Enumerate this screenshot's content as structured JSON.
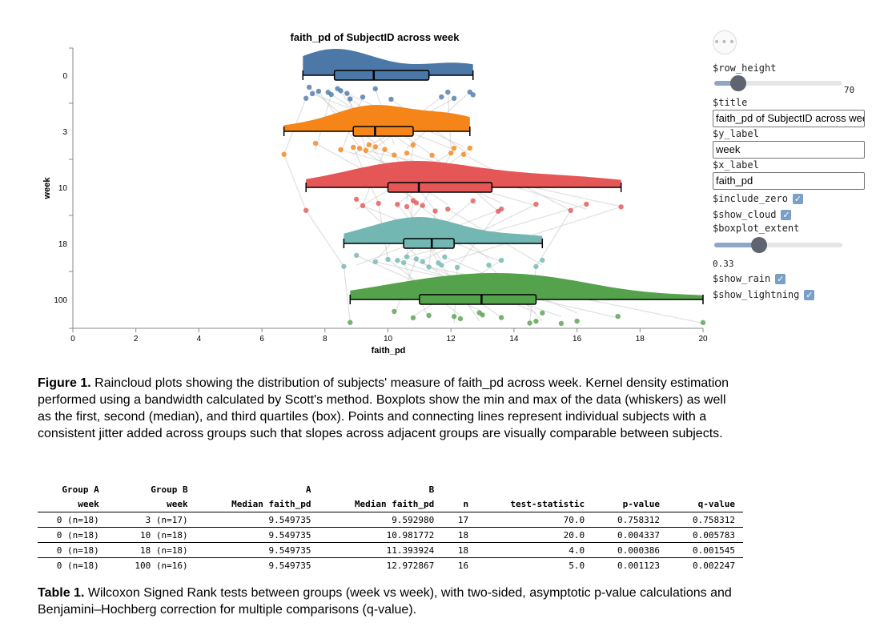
{
  "chart_data": {
    "type": "raincloud",
    "title": "faith_pd of SubjectID across week",
    "xlabel": "faith_pd",
    "ylabel": "week",
    "xlim": [
      0,
      20
    ],
    "x_ticks": [
      0,
      2,
      4,
      6,
      8,
      10,
      12,
      14,
      16,
      18,
      20
    ],
    "groups": [
      {
        "name": "0",
        "color": "#4c78a8",
        "min": 7.3,
        "q1": 8.3,
        "median": 9.55,
        "q3": 11.3,
        "max": 12.7,
        "points": [
          7.4,
          7.5,
          7.6,
          7.8,
          8.1,
          8.2,
          8.4,
          8.5,
          8.7,
          8.8,
          9.2,
          9.6,
          10.1,
          11.7,
          11.9,
          12.1,
          12.6,
          12.7
        ]
      },
      {
        "name": "3",
        "color": "#f58518",
        "min": 6.7,
        "q1": 8.9,
        "median": 9.59,
        "q3": 10.8,
        "max": 12.6,
        "points": [
          6.7,
          7.7,
          8.5,
          8.9,
          9.1,
          9.3,
          9.4,
          9.6,
          9.9,
          10.2,
          10.6,
          10.8,
          11.4,
          12.0,
          12.1,
          12.4,
          12.6
        ]
      },
      {
        "name": "10",
        "color": "#e45756",
        "min": 7.4,
        "q1": 10.0,
        "median": 10.98,
        "q3": 13.3,
        "max": 17.4,
        "points": [
          7.4,
          9.0,
          9.2,
          9.7,
          10.3,
          10.6,
          10.8,
          10.9,
          11.1,
          11.5,
          11.9,
          12.7,
          13.5,
          13.6,
          14.7,
          15.8,
          16.3,
          17.4
        ]
      },
      {
        "name": "18",
        "color": "#72b7b2",
        "min": 8.6,
        "q1": 10.5,
        "median": 11.39,
        "q3": 12.1,
        "max": 14.9,
        "points": [
          8.6,
          9.0,
          9.6,
          10.0,
          10.3,
          10.5,
          10.6,
          10.9,
          11.1,
          11.3,
          11.7,
          11.8,
          12.2,
          13.2,
          13.6,
          14.7,
          14.9,
          11.6
        ]
      },
      {
        "name": "100",
        "color": "#54a24b",
        "min": 8.8,
        "q1": 11.0,
        "median": 12.97,
        "q3": 14.7,
        "max": 20.0,
        "points": [
          8.8,
          10.2,
          10.8,
          11.3,
          12.1,
          12.3,
          12.9,
          13.0,
          13.6,
          14.5,
          14.7,
          14.9,
          15.5,
          16.0,
          17.3,
          20.0
        ]
      }
    ]
  },
  "controls": {
    "menu_icon": "ellipsis-icon",
    "row_height_label": "$row_height",
    "row_height_value": "70",
    "row_height_fraction": 0.19,
    "title_label": "$title",
    "title_value": "faith_pd of SubjectID across week",
    "y_label_label": "$y_label",
    "y_label_value": "week",
    "x_label_label": "$x_label",
    "x_label_value": "faith_pd",
    "include_zero_label": "$include_zero",
    "show_cloud_label": "$show_cloud",
    "boxplot_extent_label": "$boxplot_extent",
    "boxplot_extent_value": "0.33",
    "boxplot_extent_fraction": 0.35,
    "show_rain_label": "$show_rain",
    "show_lightning_label": "$show_lightning",
    "check_glyph": "✓"
  },
  "figure_caption": {
    "label": "Figure 1.",
    "text": " Raincloud plots showing the distribution of subjects' measure of faith_pd across week. Kernel density estimation performed using a bandwidth calculated by Scott's method. Boxplots show the min and max of the data (whiskers) as well as the first, second (median), and third quartiles (box). Points and connecting lines represent individual subjects with a consistent jitter added across groups such that slopes across adjacent groups are visually comparable between subjects."
  },
  "table": {
    "header_top": [
      "Group A",
      "Group B",
      "A",
      "B",
      "",
      "",
      "",
      ""
    ],
    "header_bottom": [
      "week",
      "week",
      "Median faith_pd",
      "Median faith_pd",
      "n",
      "test-statistic",
      "p-value",
      "q-value"
    ],
    "rows": [
      [
        "0 (n=18)",
        "3 (n=17)",
        "9.549735",
        "9.592980",
        "17",
        "70.0",
        "0.758312",
        "0.758312"
      ],
      [
        "0 (n=18)",
        "10 (n=18)",
        "9.549735",
        "10.981772",
        "18",
        "20.0",
        "0.004337",
        "0.005783"
      ],
      [
        "0 (n=18)",
        "18 (n=18)",
        "9.549735",
        "11.393924",
        "18",
        "4.0",
        "0.000386",
        "0.001545"
      ],
      [
        "0 (n=18)",
        "100 (n=16)",
        "9.549735",
        "12.972867",
        "16",
        "5.0",
        "0.001123",
        "0.002247"
      ]
    ]
  },
  "table_caption": {
    "label": "Table 1.",
    "text": " Wilcoxon Signed Rank tests between groups (week vs week), with two-sided, asymptotic p-value calculations and Benjamini–Hochberg correction for multiple comparisons (q-value)."
  }
}
